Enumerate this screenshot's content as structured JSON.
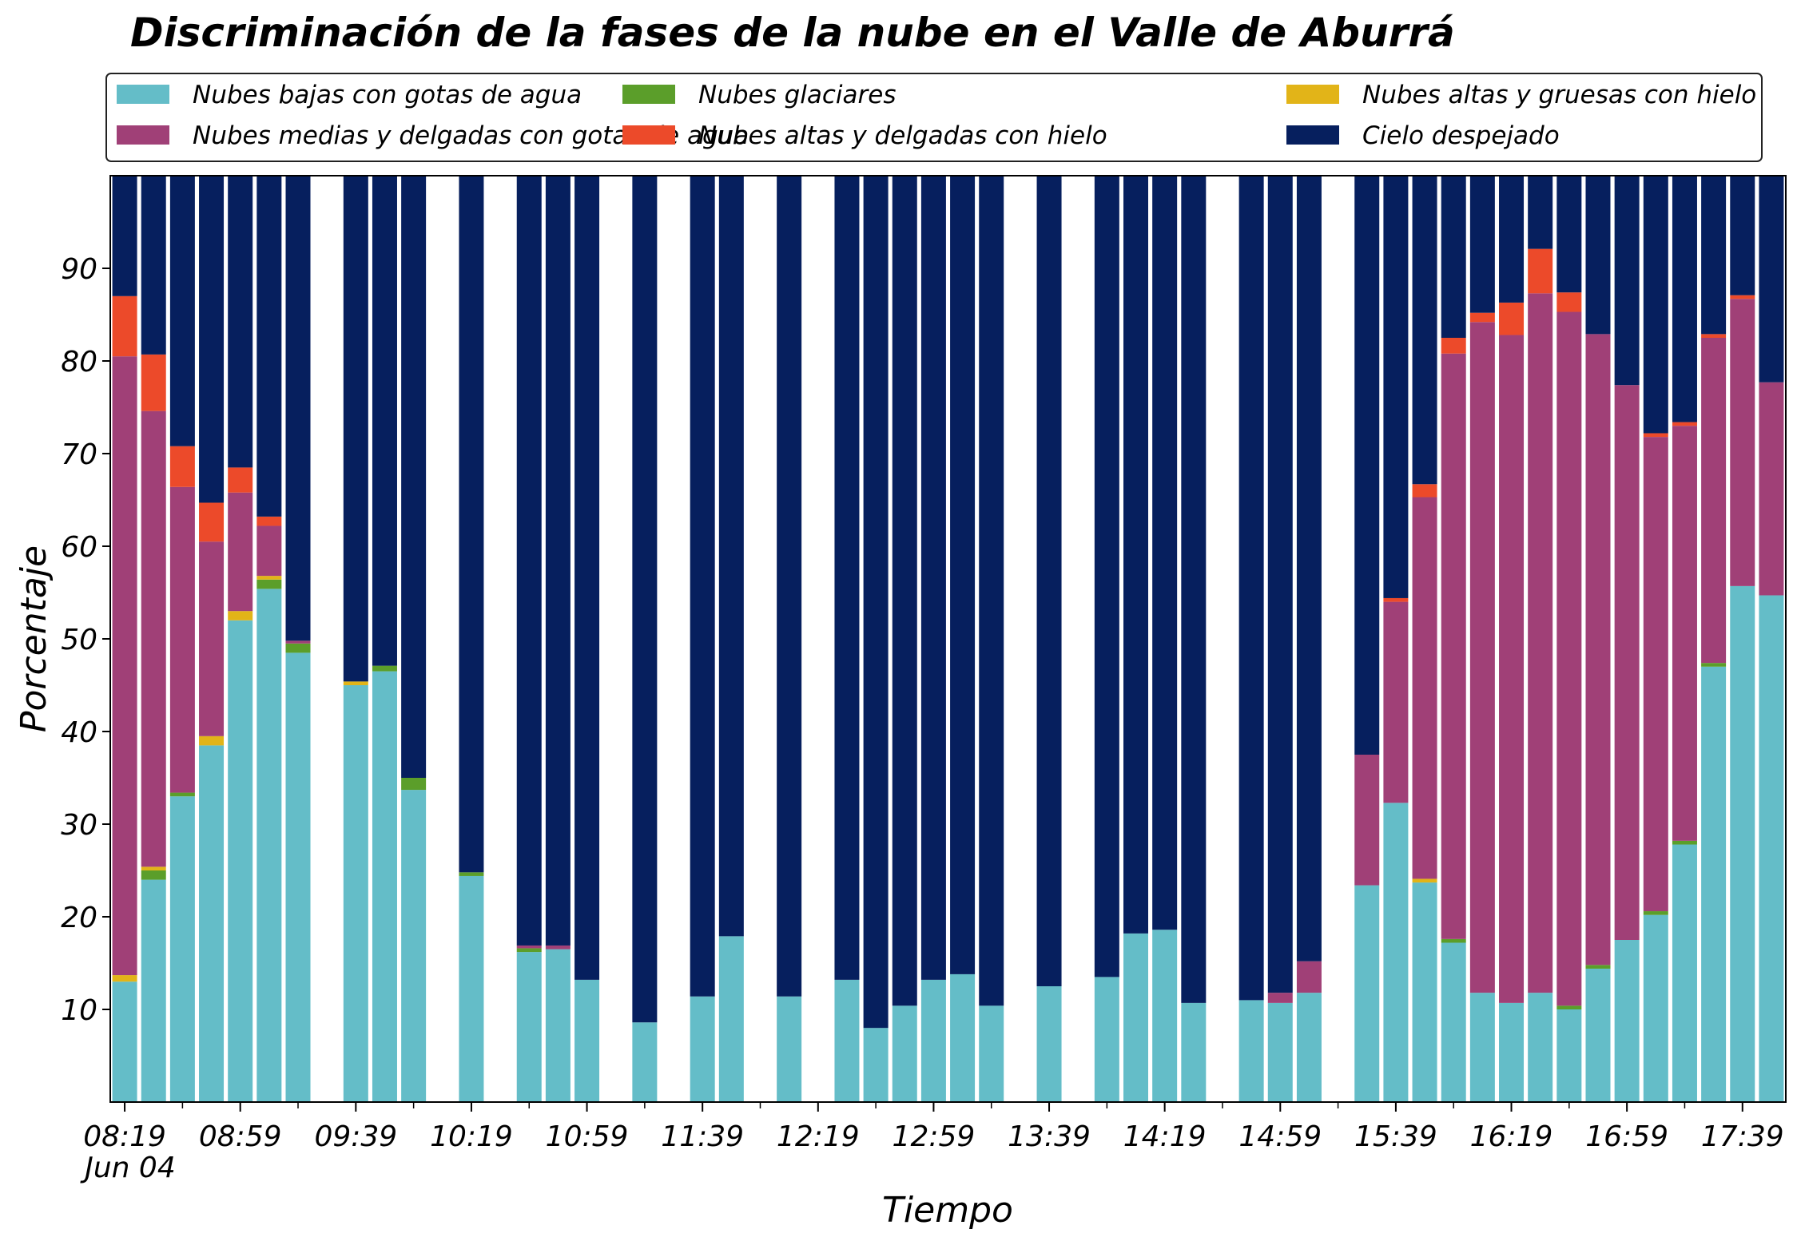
{
  "chart_data": {
    "type": "bar",
    "stacked": true,
    "title": "Discriminación de la fases de la nube en el Valle de Aburrá",
    "xlabel": "Tiempo",
    "ylabel": "Porcentaje",
    "x_date_label": "Jun 04",
    "ylim": [
      0,
      100
    ],
    "yticks": [
      10,
      20,
      30,
      40,
      50,
      60,
      70,
      80,
      90
    ],
    "x_tick_labels": [
      "08:19",
      "08:59",
      "09:39",
      "10:19",
      "10:59",
      "11:39",
      "12:19",
      "12:59",
      "13:39",
      "14:19",
      "14:59",
      "15:39",
      "16:19",
      "16:59",
      "17:39"
    ],
    "x_start": "08:14",
    "x_end": "17:54",
    "legend_position": "top",
    "series": [
      {
        "name": "Nubes bajas con gotas de agua",
        "color": "#64bdc8"
      },
      {
        "name": "Nubes glaciares",
        "color": "#5b9e2a"
      },
      {
        "name": "Nubes altas y gruesas con hielo",
        "color": "#e2b418"
      },
      {
        "name": "Nubes medias y delgadas con gotas de agua",
        "color": "#a04077"
      },
      {
        "name": "Nubes altas y delgadas con hielo",
        "color": "#ec4a2a"
      },
      {
        "name": "Cielo despejado",
        "color": "#061f5e"
      }
    ],
    "data": [
      {
        "time": "08:19",
        "values": [
          13.0,
          0.0,
          0.7,
          66.8,
          6.5,
          13.0
        ]
      },
      {
        "time": "08:29",
        "values": [
          24.0,
          1.0,
          0.4,
          49.2,
          6.1,
          19.3
        ]
      },
      {
        "time": "08:39",
        "values": [
          33.0,
          0.4,
          0.0,
          33.0,
          4.4,
          29.2
        ]
      },
      {
        "time": "08:49",
        "values": [
          38.5,
          0.0,
          1.0,
          21.0,
          4.2,
          35.3
        ]
      },
      {
        "time": "08:59",
        "values": [
          52.0,
          0.0,
          1.0,
          12.8,
          2.7,
          31.5
        ]
      },
      {
        "time": "09:09",
        "values": [
          55.4,
          1.0,
          0.4,
          5.4,
          1.0,
          36.8
        ]
      },
      {
        "time": "09:19",
        "values": [
          48.5,
          1.0,
          0.0,
          0.3,
          0.0,
          50.2
        ]
      },
      {
        "time": "09:39",
        "values": [
          45.0,
          0.0,
          0.4,
          0.0,
          0.0,
          54.6
        ]
      },
      {
        "time": "09:49",
        "values": [
          46.5,
          0.6,
          0.0,
          0.0,
          0.0,
          52.9
        ]
      },
      {
        "time": "09:59",
        "values": [
          33.7,
          1.3,
          0.0,
          0.0,
          0.0,
          65.0
        ]
      },
      {
        "time": "10:19",
        "values": [
          24.4,
          0.4,
          0.0,
          0.0,
          0.0,
          75.2
        ]
      },
      {
        "time": "10:39",
        "values": [
          16.2,
          0.4,
          0.0,
          0.3,
          0.0,
          83.1
        ]
      },
      {
        "time": "10:49",
        "values": [
          16.5,
          0.0,
          0.0,
          0.4,
          0.0,
          83.1
        ]
      },
      {
        "time": "10:59",
        "values": [
          13.2,
          0.0,
          0.0,
          0.0,
          0.0,
          86.8
        ]
      },
      {
        "time": "11:19",
        "values": [
          8.6,
          0.0,
          0.0,
          0.0,
          0.0,
          91.4
        ]
      },
      {
        "time": "11:39",
        "values": [
          11.4,
          0.0,
          0.0,
          0.0,
          0.0,
          88.6
        ]
      },
      {
        "time": "11:49",
        "values": [
          17.9,
          0.0,
          0.0,
          0.0,
          0.0,
          82.1
        ]
      },
      {
        "time": "12:09",
        "values": [
          11.4,
          0.0,
          0.0,
          0.0,
          0.0,
          88.6
        ]
      },
      {
        "time": "12:29",
        "values": [
          13.2,
          0.0,
          0.0,
          0.0,
          0.0,
          86.8
        ]
      },
      {
        "time": "12:39",
        "values": [
          8.0,
          0.0,
          0.0,
          0.0,
          0.0,
          92.0
        ]
      },
      {
        "time": "12:49",
        "values": [
          10.4,
          0.0,
          0.0,
          0.0,
          0.0,
          89.6
        ]
      },
      {
        "time": "12:59",
        "values": [
          13.2,
          0.0,
          0.0,
          0.0,
          0.0,
          86.8
        ]
      },
      {
        "time": "13:09",
        "values": [
          13.8,
          0.0,
          0.0,
          0.0,
          0.0,
          86.2
        ]
      },
      {
        "time": "13:19",
        "values": [
          10.4,
          0.0,
          0.0,
          0.0,
          0.0,
          89.6
        ]
      },
      {
        "time": "13:39",
        "values": [
          12.5,
          0.0,
          0.0,
          0.0,
          0.0,
          87.5
        ]
      },
      {
        "time": "13:59",
        "values": [
          13.5,
          0.0,
          0.0,
          0.0,
          0.0,
          86.5
        ]
      },
      {
        "time": "14:09",
        "values": [
          18.2,
          0.0,
          0.0,
          0.0,
          0.0,
          81.8
        ]
      },
      {
        "time": "14:19",
        "values": [
          18.6,
          0.0,
          0.0,
          0.0,
          0.0,
          81.4
        ]
      },
      {
        "time": "14:29",
        "values": [
          10.7,
          0.0,
          0.0,
          0.0,
          0.0,
          89.3
        ]
      },
      {
        "time": "14:49",
        "values": [
          11.0,
          0.0,
          0.0,
          0.0,
          0.0,
          89.0
        ]
      },
      {
        "time": "14:59",
        "values": [
          10.7,
          0.0,
          0.0,
          1.1,
          0.0,
          88.2
        ]
      },
      {
        "time": "15:09",
        "values": [
          11.8,
          0.0,
          0.0,
          3.4,
          0.0,
          84.8
        ]
      },
      {
        "time": "15:29",
        "values": [
          23.4,
          0.0,
          0.0,
          14.1,
          0.0,
          62.5
        ]
      },
      {
        "time": "15:39",
        "values": [
          32.3,
          0.0,
          0.0,
          21.7,
          0.4,
          45.6
        ]
      },
      {
        "time": "15:49",
        "values": [
          23.7,
          0.0,
          0.4,
          41.2,
          1.4,
          33.3
        ]
      },
      {
        "time": "15:59",
        "values": [
          17.2,
          0.4,
          0.0,
          63.2,
          1.7,
          17.5
        ]
      },
      {
        "time": "16:09",
        "values": [
          11.8,
          0.0,
          0.0,
          72.4,
          1.0,
          14.8
        ]
      },
      {
        "time": "16:19",
        "values": [
          10.7,
          0.0,
          0.0,
          72.1,
          3.5,
          13.7
        ]
      },
      {
        "time": "16:29",
        "values": [
          11.8,
          0.0,
          0.0,
          75.5,
          4.8,
          7.9
        ]
      },
      {
        "time": "16:39",
        "values": [
          10.0,
          0.4,
          0.0,
          74.9,
          2.1,
          12.6
        ]
      },
      {
        "time": "16:49",
        "values": [
          14.4,
          0.4,
          0.0,
          68.1,
          0.0,
          17.1
        ]
      },
      {
        "time": "16:59",
        "values": [
          17.5,
          0.0,
          0.0,
          59.9,
          0.0,
          22.6
        ]
      },
      {
        "time": "17:09",
        "values": [
          20.2,
          0.4,
          0.0,
          51.2,
          0.4,
          27.8
        ]
      },
      {
        "time": "17:19",
        "values": [
          27.8,
          0.4,
          0.0,
          44.8,
          0.4,
          26.6
        ]
      },
      {
        "time": "17:29",
        "values": [
          47.0,
          0.4,
          0.0,
          35.1,
          0.4,
          17.1
        ]
      },
      {
        "time": "17:39",
        "values": [
          55.7,
          0.0,
          0.0,
          31.0,
          0.4,
          12.9
        ]
      },
      {
        "time": "17:49",
        "values": [
          54.7,
          0.0,
          0.0,
          23.0,
          0.0,
          22.3
        ]
      }
    ]
  }
}
